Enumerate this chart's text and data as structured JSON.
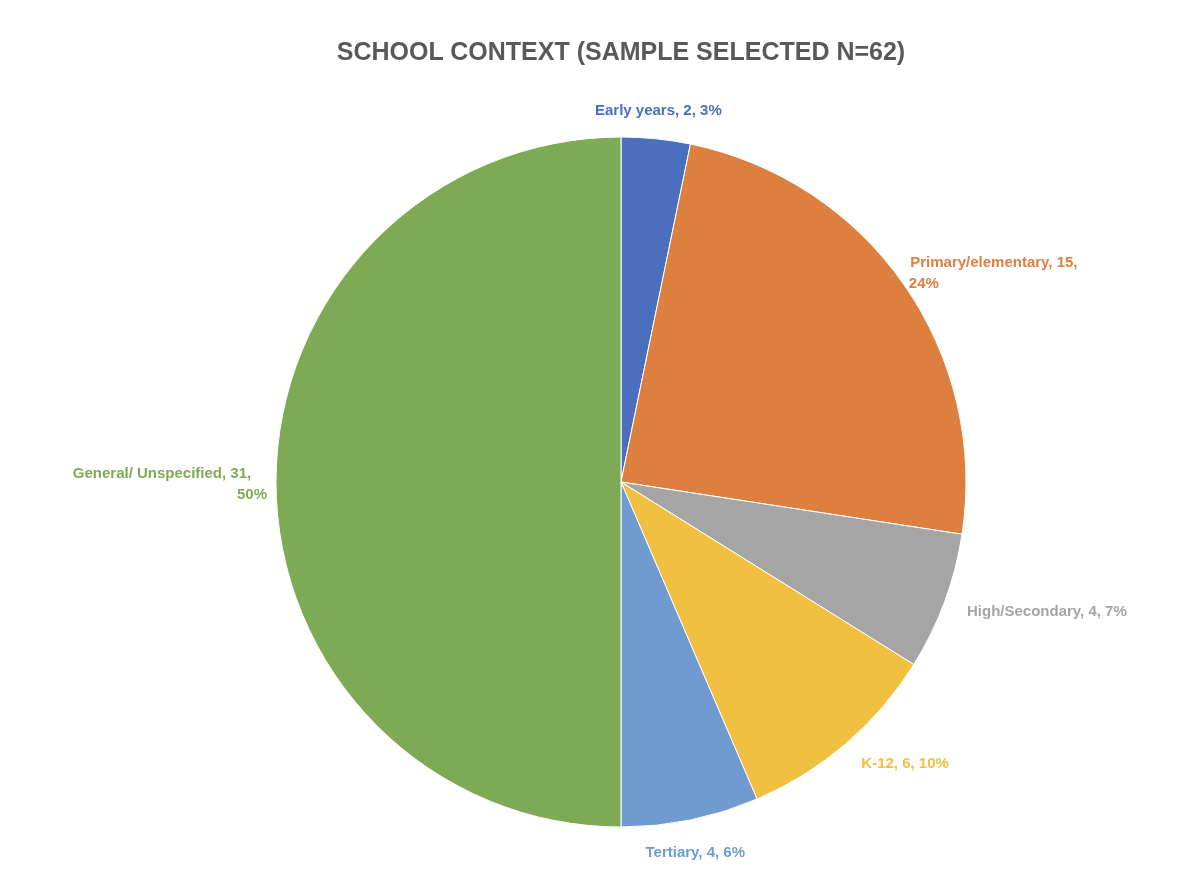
{
  "chart_data": {
    "type": "pie",
    "title": "SCHOOL CONTEXT (SAMPLE SELECTED N=62)",
    "categories": [
      "Early years",
      "Primary/elementary",
      "High/Secondary",
      "K-12",
      "Tertiary",
      "General/ Unspecified"
    ],
    "values": [
      2,
      15,
      4,
      6,
      4,
      31
    ],
    "value_labels": [
      "2, 3%",
      "15, 24%",
      "4, 7%",
      "6, 10%",
      "4, 6%",
      "31, 50%"
    ],
    "colors": [
      "#4a6fbf",
      "#dd7f3e",
      "#a5a5a5",
      "#f2c040",
      "#6f9bd0",
      "#7faa55"
    ]
  }
}
